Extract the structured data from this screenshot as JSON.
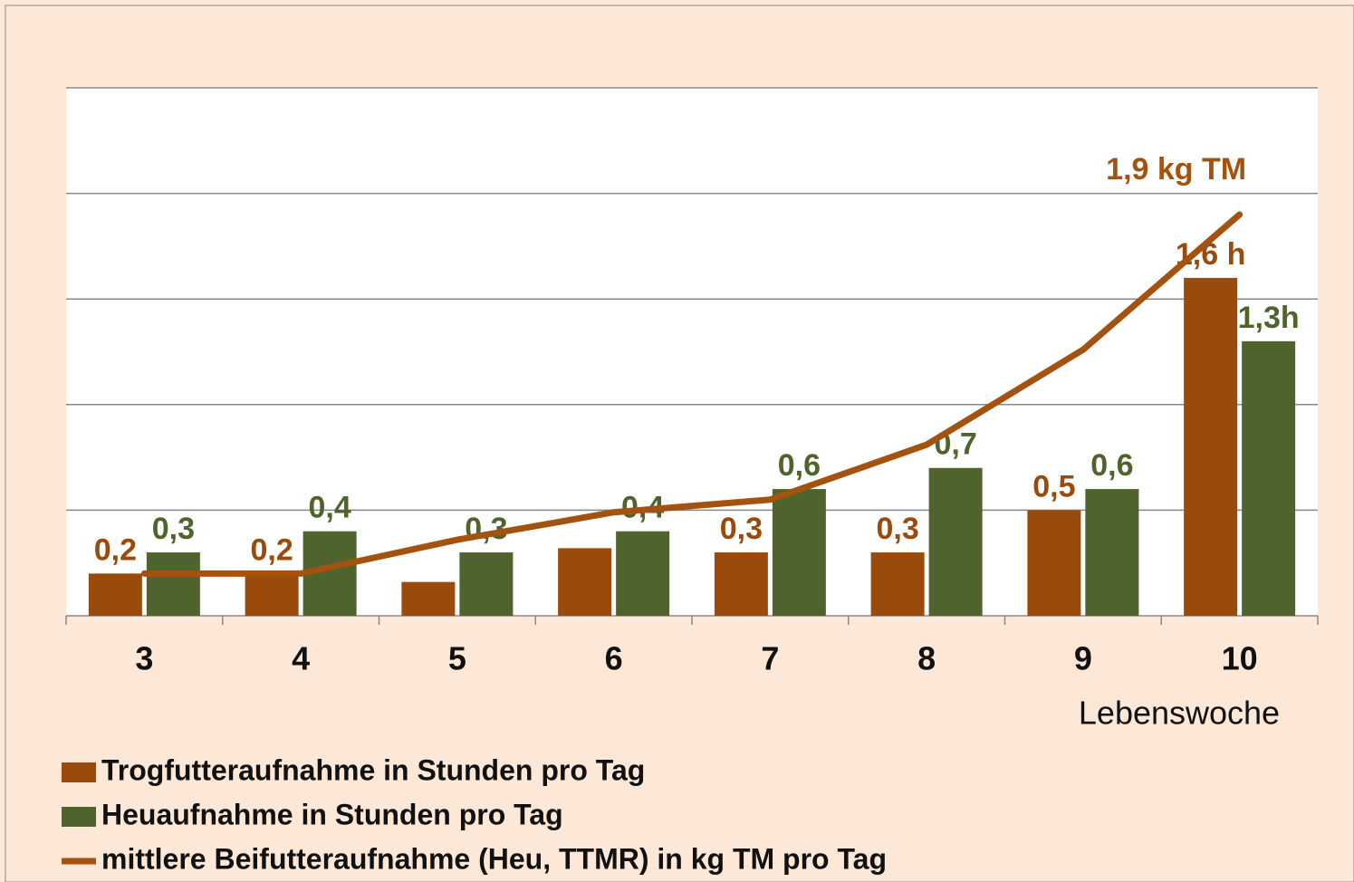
{
  "chart_data": {
    "type": "bar",
    "categories": [
      "3",
      "4",
      "5",
      "6",
      "7",
      "8",
      "9",
      "10"
    ],
    "series": [
      {
        "name": "Trogfutteraufnahme in Stunden pro Tag",
        "type": "bar",
        "color": "#9a4a0a",
        "values": [
          0.2,
          0.2,
          0.16,
          0.32,
          0.3,
          0.3,
          0.5,
          1.6
        ],
        "value_labels": [
          "0,2",
          "0,2",
          null,
          null,
          "0,3",
          "0,3",
          "0,5",
          "1,6 h"
        ]
      },
      {
        "name": "Heuaufnahme in Stunden pro Tag",
        "type": "bar",
        "color": "#4f632d",
        "values": [
          0.3,
          0.4,
          0.3,
          0.4,
          0.6,
          0.7,
          0.6,
          1.3
        ],
        "value_labels": [
          "0,3",
          "0,4",
          "0,3",
          "0,4",
          "0,6",
          "0,7",
          "0,6",
          "1,3h"
        ]
      },
      {
        "name": "mittlere Beifutteraufnahme (Heu, TTMR) in kg TM pro Tag",
        "type": "line",
        "color": "#a3520f",
        "values": [
          0.2,
          0.2,
          0.36,
          0.49,
          0.55,
          0.81,
          1.26,
          1.9
        ],
        "value_labels": [
          null,
          null,
          null,
          null,
          null,
          null,
          null,
          "1,9 kg TM"
        ]
      }
    ],
    "xlabel": "Lebenswoche",
    "ylim": [
      0,
      2.5
    ],
    "yticks": [
      0,
      0.5,
      1,
      1.5,
      2,
      2.5
    ],
    "grid": true
  }
}
